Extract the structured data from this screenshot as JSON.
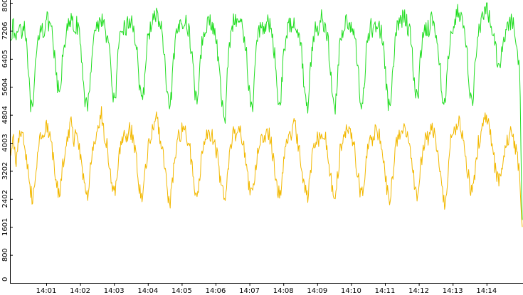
{
  "chart_data": {
    "type": "line",
    "title": "",
    "xlabel": "",
    "ylabel": "",
    "x_ticks": [
      "14:01",
      "14:02",
      "14:03",
      "14:04",
      "14:05",
      "14:06",
      "14:07",
      "14:08",
      "14:09",
      "14:10",
      "14:11",
      "14:12",
      "14:13",
      "14:14"
    ],
    "y_ticks": [
      "0",
      "800",
      "1601",
      "2402",
      "3202",
      "4003",
      "4804",
      "5604",
      "6405",
      "7206",
      "8007"
    ],
    "ylim": [
      0,
      8007
    ],
    "x_range_minutes": [
      14.31,
      14.77
    ],
    "grid": false,
    "series": [
      {
        "color": "#22dd22",
        "description_values": "periodic oscillation roughly every 30 s",
        "base": 7000,
        "amplitude": 1000,
        "dip_min": 4500,
        "values": [
          7150,
          7300,
          6900,
          7420,
          7250,
          7380,
          6800,
          5200,
          4800,
          6100,
          7000,
          7400,
          7200,
          7550,
          7350,
          7100,
          6400,
          5600,
          5400,
          6600,
          7100,
          7300,
          7500,
          7250,
          7420,
          7000,
          6200,
          5300,
          4900,
          6000,
          7000,
          7300,
          7400,
          7600,
          7280,
          7100,
          6500,
          5500,
          5100,
          6400,
          7100,
          7350,
          7250,
          7500,
          7400,
          7200,
          6600,
          5400,
          5000,
          6300,
          7050,
          7400,
          7500,
          7700,
          7450,
          7200,
          6300,
          5200,
          4900,
          6100,
          6900,
          7300,
          7400,
          7600,
          7350,
          7100,
          6500,
          5400,
          5300,
          6500,
          7100,
          7400,
          7500,
          7350,
          7200,
          6800,
          5800,
          5000,
          4800,
          6300,
          7200,
          7500,
          7400,
          7620,
          7300,
          7050,
          6300,
          5200,
          5000,
          6400,
          7100,
          7400,
          7300,
          7500,
          7350,
          7150,
          6500,
          5400,
          5100,
          6300,
          7000,
          7300,
          7400,
          7600,
          7350,
          7100,
          6400,
          5300,
          5000,
          6200,
          7000,
          7350,
          7300,
          7550,
          7400,
          7150,
          6400,
          5200,
          4900,
          6200,
          7050,
          7300,
          7400,
          7550,
          7300,
          7000,
          6400,
          5300,
          5100,
          6300,
          7000,
          7300,
          7250,
          7450,
          7300,
          7100,
          6300,
          5200,
          5000,
          6000,
          7100,
          7400,
          7500,
          7700,
          7450,
          7200,
          6600,
          5500,
          5200,
          6500,
          7100,
          7350,
          7300,
          7500,
          7350,
          7050,
          6300,
          5200,
          5000,
          6300,
          7150,
          7450,
          7600,
          7800,
          7500,
          7200,
          6500,
          5400,
          5200,
          6400,
          7100,
          7400,
          7600,
          7900,
          7600,
          7300,
          6800,
          6400,
          6300,
          6900,
          7200,
          7400,
          7500,
          7300,
          6800,
          6200,
          1800
        ]
      },
      {
        "color": "#f2b800",
        "description_values": "periodic oscillation roughly every 30 s",
        "base": 3800,
        "amplitude": 900,
        "dip_min": 2100,
        "values": [
          3700,
          4100,
          3500,
          4200,
          4400,
          4000,
          3300,
          2700,
          2400,
          3100,
          3900,
          4300,
          4100,
          4500,
          4200,
          3800,
          3200,
          2700,
          2600,
          3400,
          4000,
          4300,
          4600,
          4100,
          4300,
          3900,
          3300,
          2700,
          2500,
          3200,
          3900,
          4200,
          4300,
          4800,
          4300,
          3900,
          3300,
          2700,
          2500,
          3300,
          4000,
          4300,
          4100,
          4400,
          4300,
          3900,
          3300,
          2600,
          2400,
          3200,
          3900,
          4200,
          4400,
          4700,
          4300,
          3900,
          3200,
          2600,
          2300,
          3100,
          3800,
          4200,
          4300,
          4600,
          4200,
          3900,
          3300,
          2700,
          2600,
          3300,
          3900,
          4200,
          4400,
          4200,
          4100,
          3700,
          3100,
          2600,
          2500,
          3300,
          4000,
          4300,
          4200,
          4500,
          4200,
          3800,
          3100,
          2600,
          2500,
          3300,
          3900,
          4200,
          4100,
          4400,
          4200,
          3900,
          3200,
          2700,
          2500,
          3200,
          3900,
          4200,
          4300,
          4600,
          4200,
          3800,
          3100,
          2600,
          2500,
          3200,
          3900,
          4200,
          4100,
          4400,
          4300,
          3900,
          3200,
          2600,
          2400,
          3200,
          3900,
          4200,
          4300,
          4500,
          4200,
          3800,
          3200,
          2600,
          2500,
          3200,
          3900,
          4100,
          4200,
          4400,
          4200,
          3900,
          3200,
          2600,
          2400,
          3100,
          3900,
          4200,
          4300,
          4600,
          4300,
          3900,
          3300,
          2700,
          2500,
          3300,
          3900,
          4200,
          4100,
          4500,
          4300,
          3800,
          3100,
          2500,
          2300,
          3100,
          4000,
          4300,
          4400,
          4700,
          4300,
          3900,
          3300,
          2700,
          2600,
          3300,
          4000,
          4300,
          4500,
          4800,
          4400,
          4000,
          3400,
          3000,
          2900,
          3500,
          3900,
          4200,
          4300,
          4100,
          3700,
          3200,
          1600
        ]
      }
    ]
  }
}
